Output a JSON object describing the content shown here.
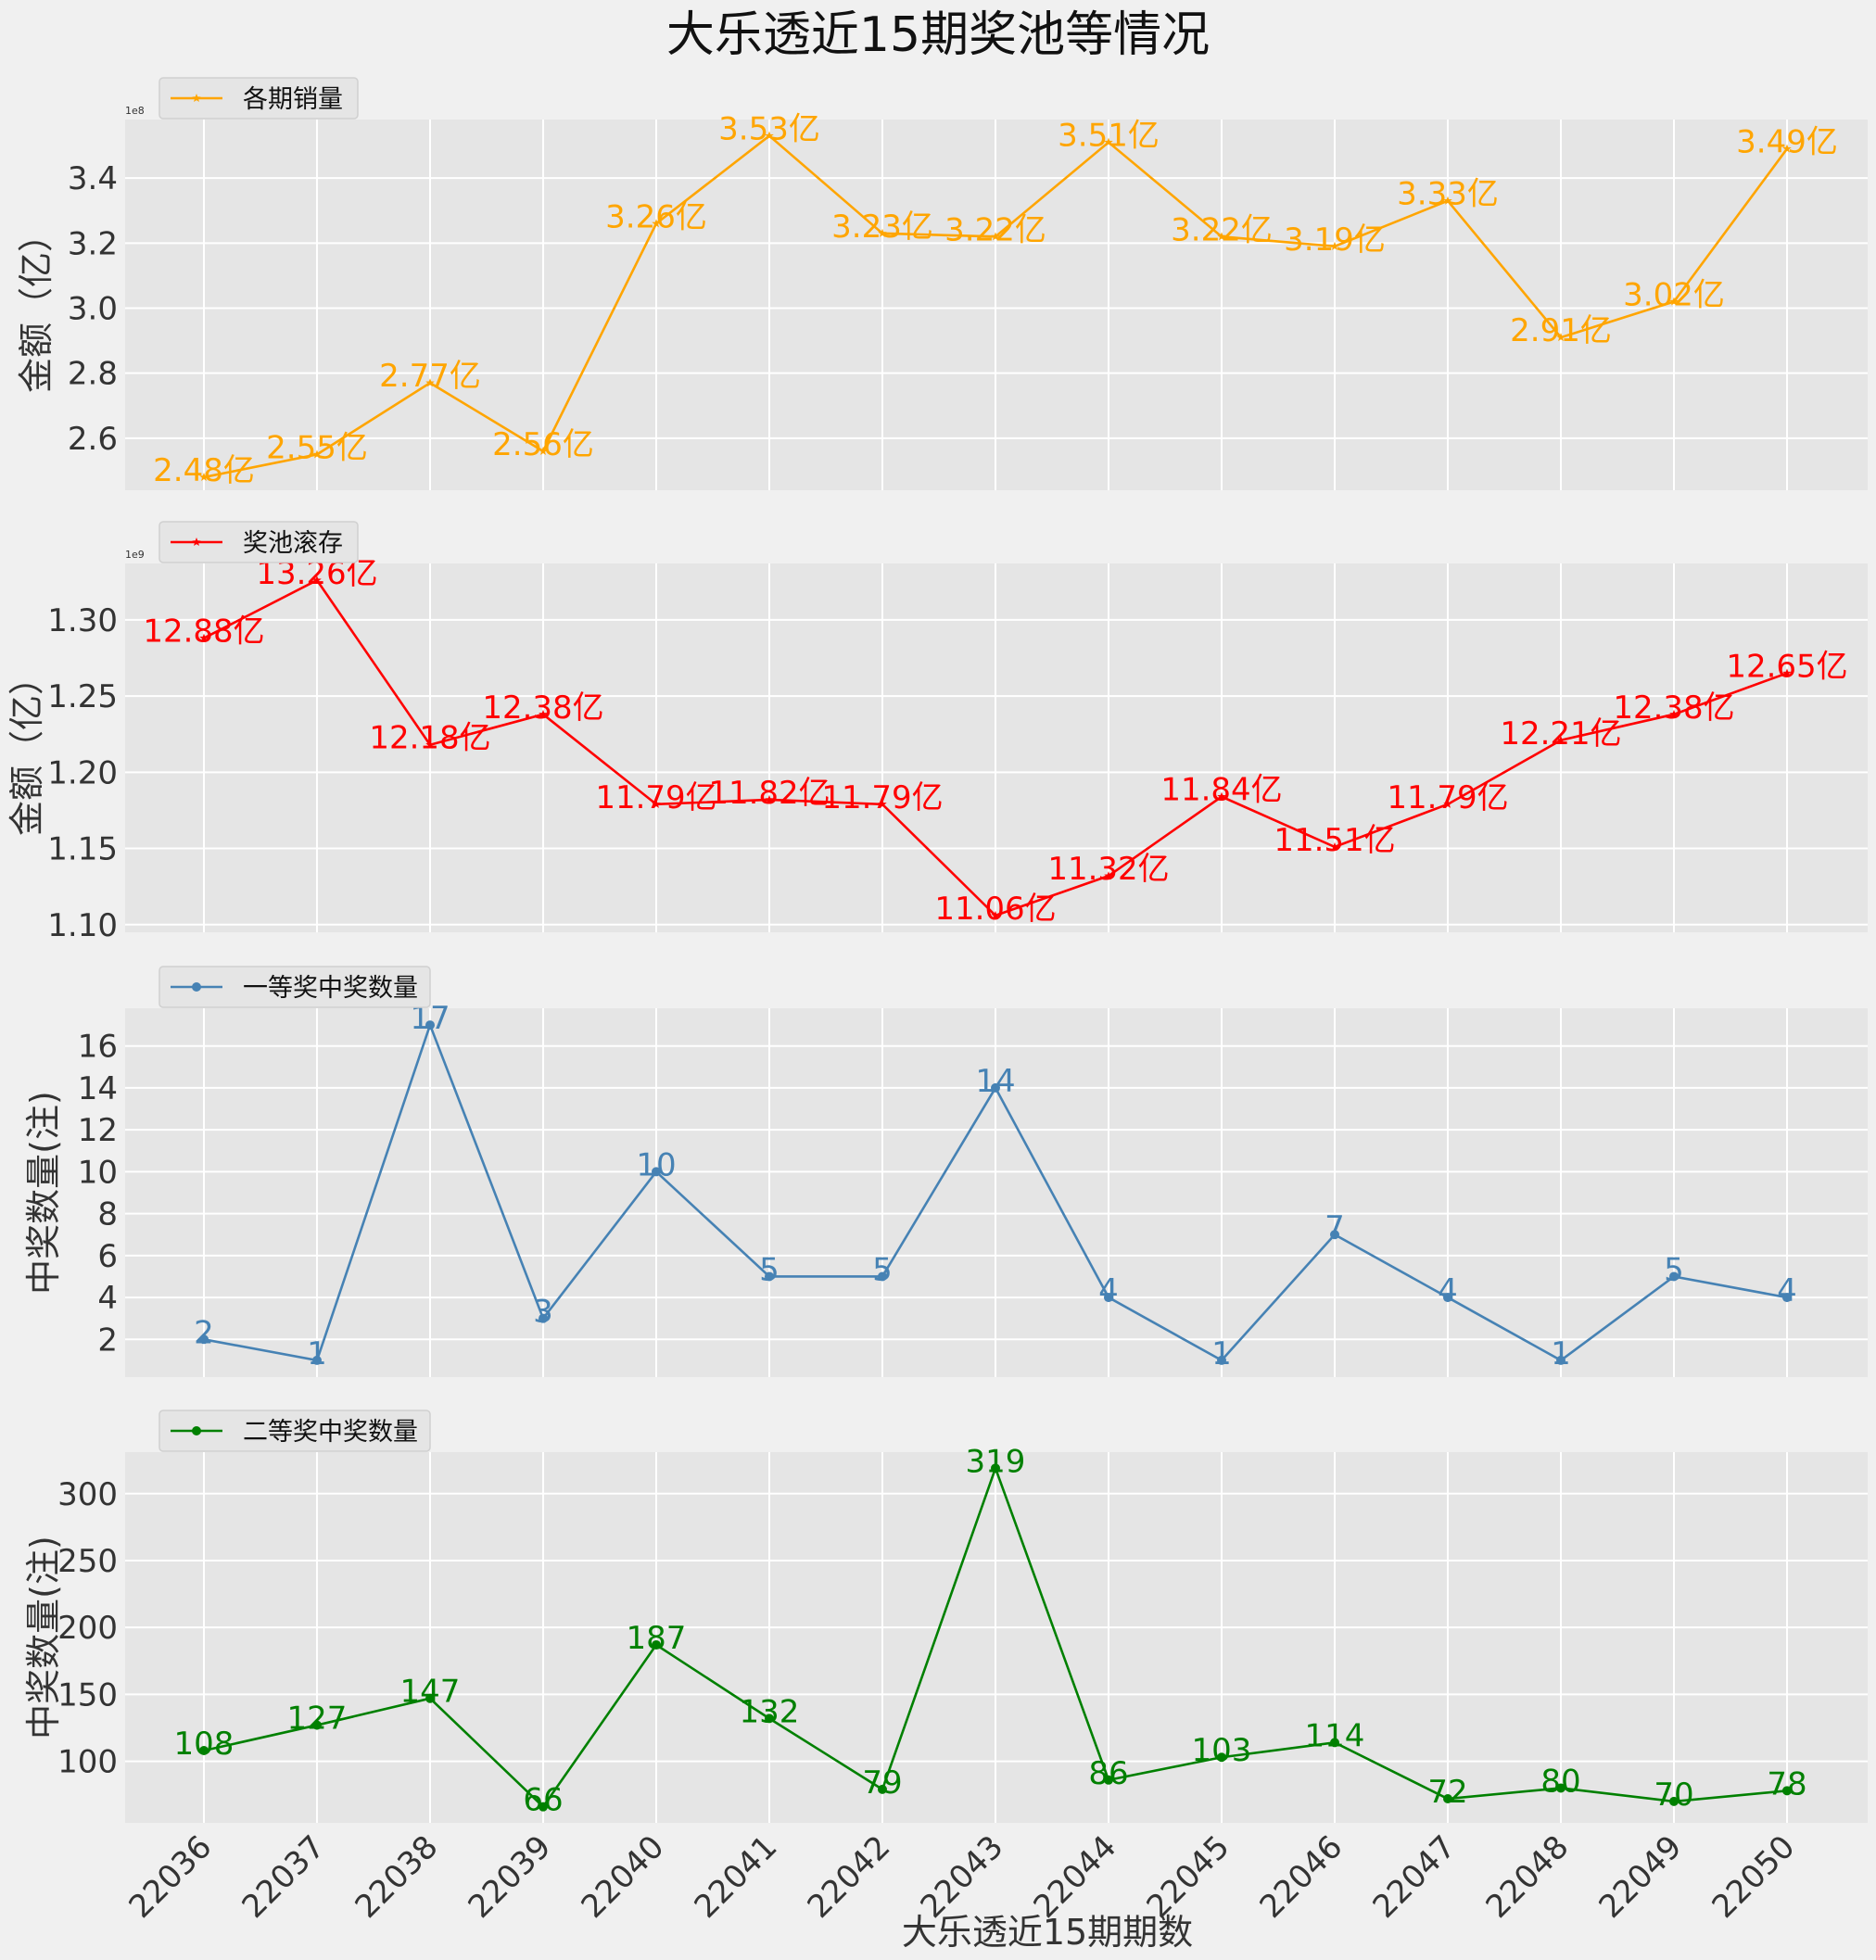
{
  "title": "大乐透近15期奖池等情况",
  "xlabel": "大乐透近15期期数",
  "chart_data": [
    {
      "type": "line",
      "legend": "各期销量",
      "ylabel": "金额（亿）",
      "exponent_label": "1e8",
      "color": "#ffa500",
      "marker": "star",
      "categories": [
        "22036",
        "22037",
        "22038",
        "22039",
        "22040",
        "22041",
        "22042",
        "22043",
        "22044",
        "22045",
        "22046",
        "22047",
        "22048",
        "22049",
        "22050"
      ],
      "values": [
        2.48,
        2.55,
        2.77,
        2.56,
        3.26,
        3.53,
        3.23,
        3.22,
        3.51,
        3.22,
        3.19,
        3.33,
        2.91,
        3.02,
        3.49
      ],
      "data_labels": [
        "2.48亿",
        "2.55亿",
        "2.77亿",
        "2.56亿",
        "3.26亿",
        "3.53亿",
        "3.23亿",
        "3.22亿",
        "3.51亿",
        "3.22亿",
        "3.19亿",
        "3.33亿",
        "2.91亿",
        "3.02亿",
        "3.49亿"
      ],
      "ylim": [
        2.44,
        3.58
      ],
      "yticks": [
        2.6,
        2.8,
        3.0,
        3.2,
        3.4
      ],
      "ytick_labels": [
        "2.6",
        "2.8",
        "3.0",
        "3.2",
        "3.4"
      ],
      "grid": true,
      "legend_position": "upper-left"
    },
    {
      "type": "line",
      "legend": "奖池滚存",
      "ylabel": "金额（亿）",
      "exponent_label": "1e9",
      "color": "#ff0000",
      "marker": "star",
      "categories": [
        "22036",
        "22037",
        "22038",
        "22039",
        "22040",
        "22041",
        "22042",
        "22043",
        "22044",
        "22045",
        "22046",
        "22047",
        "22048",
        "22049",
        "22050"
      ],
      "values": [
        1.288,
        1.326,
        1.218,
        1.238,
        1.179,
        1.182,
        1.179,
        1.106,
        1.132,
        1.184,
        1.151,
        1.179,
        1.221,
        1.238,
        1.265
      ],
      "data_labels": [
        "12.88亿",
        "13.26亿",
        "12.18亿",
        "12.38亿",
        "11.79亿",
        "11.82亿",
        "11.79亿",
        "11.06亿",
        "11.32亿",
        "11.84亿",
        "11.51亿",
        "11.79亿",
        "12.21亿",
        "12.38亿",
        "12.65亿"
      ],
      "ylim": [
        1.095,
        1.337
      ],
      "yticks": [
        1.1,
        1.15,
        1.2,
        1.25,
        1.3
      ],
      "ytick_labels": [
        "1.10",
        "1.15",
        "1.20",
        "1.25",
        "1.30"
      ],
      "grid": true,
      "legend_position": "upper-left"
    },
    {
      "type": "line",
      "legend": "一等奖中奖数量",
      "ylabel": "中奖数量(注)",
      "color": "#4682b4",
      "marker": "circle",
      "categories": [
        "22036",
        "22037",
        "22038",
        "22039",
        "22040",
        "22041",
        "22042",
        "22043",
        "22044",
        "22045",
        "22046",
        "22047",
        "22048",
        "22049",
        "22050"
      ],
      "values": [
        2,
        1,
        17,
        3,
        10,
        5,
        5,
        14,
        4,
        1,
        7,
        4,
        1,
        5,
        4
      ],
      "data_labels": [
        "2",
        "1",
        "17",
        "3",
        "10",
        "5",
        "5",
        "14",
        "4",
        "1",
        "7",
        "4",
        "1",
        "5",
        "4"
      ],
      "ylim": [
        0.2,
        17.8
      ],
      "yticks": [
        2,
        4,
        6,
        8,
        10,
        12,
        14,
        16
      ],
      "ytick_labels": [
        "2",
        "4",
        "6",
        "8",
        "10",
        "12",
        "14",
        "16"
      ],
      "grid": true,
      "legend_position": "upper-left"
    },
    {
      "type": "line",
      "legend": "二等奖中奖数量",
      "ylabel": "中奖数量(注)",
      "color": "#008000",
      "marker": "circle",
      "categories": [
        "22036",
        "22037",
        "22038",
        "22039",
        "22040",
        "22041",
        "22042",
        "22043",
        "22044",
        "22045",
        "22046",
        "22047",
        "22048",
        "22049",
        "22050"
      ],
      "values": [
        108,
        127,
        147,
        66,
        187,
        132,
        79,
        319,
        86,
        103,
        114,
        72,
        80,
        70,
        78
      ],
      "data_labels": [
        "108",
        "127",
        "147",
        "66",
        "187",
        "132",
        "79",
        "319",
        "86",
        "103",
        "114",
        "72",
        "80",
        "70",
        "78"
      ],
      "ylim": [
        54,
        331
      ],
      "yticks": [
        100,
        150,
        200,
        250,
        300
      ],
      "ytick_labels": [
        "100",
        "150",
        "200",
        "250",
        "300"
      ],
      "grid": true,
      "legend_position": "upper-left"
    }
  ]
}
